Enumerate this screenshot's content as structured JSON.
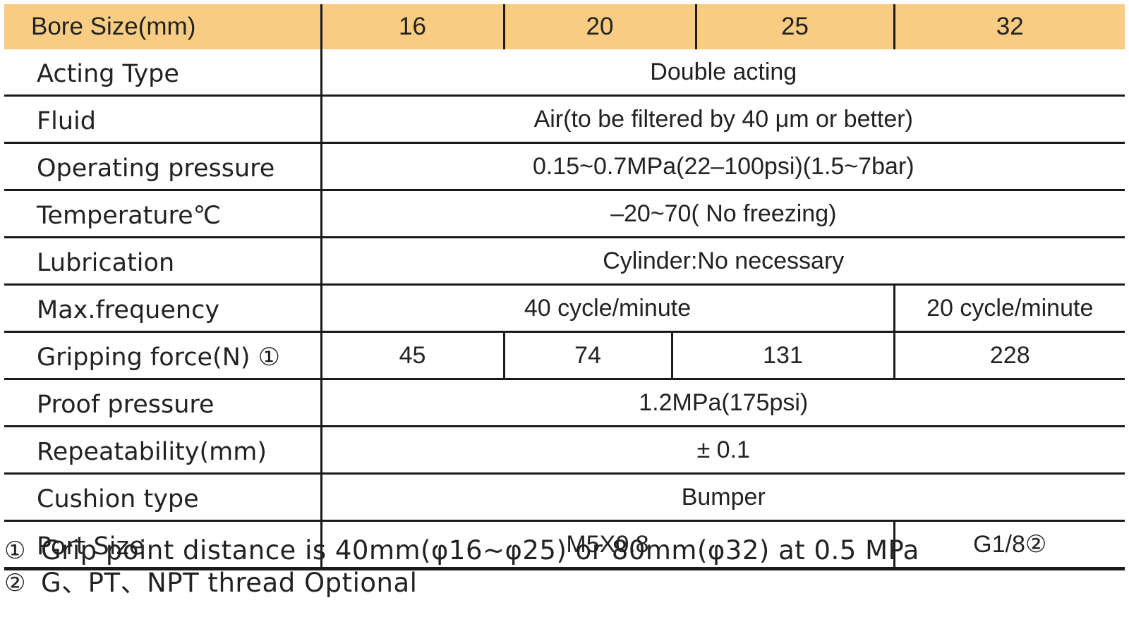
{
  "header": {
    "label": "Bore Size(mm)",
    "bores": [
      "16",
      "20",
      "25",
      "32"
    ]
  },
  "rows": {
    "acting_type": {
      "label": "Acting Type",
      "value": "Double acting"
    },
    "fluid": {
      "label": "Fluid",
      "value": "Air(to be filtered by 40  μm or better)"
    },
    "operating_pressure": {
      "label": "Operating pressure",
      "value": "0.15~0.7MPa(22–100psi)(1.5~7bar)"
    },
    "temperature": {
      "label": "Temperature℃",
      "value": "–20~70( No freezing)"
    },
    "lubrication": {
      "label": "Lubrication",
      "value": "Cylinder:No necessary"
    },
    "max_frequency": {
      "label": "Max.frequency",
      "value_small": "40 cycle/minute",
      "value_large": "20 cycle/minute"
    },
    "gripping_force": {
      "label": "Gripping force(N) ①",
      "values": [
        "45",
        "74",
        "131",
        "228"
      ]
    },
    "proof_pressure": {
      "label": "Proof pressure",
      "value": "1.2MPa(175psi)"
    },
    "repeatability": {
      "label": "Repeatability(mm)",
      "value": "± 0.1"
    },
    "cushion_type": {
      "label": "Cushion type",
      "value": "Bumper"
    },
    "port_size": {
      "label": "Port Size",
      "value_small": "M5X0.8",
      "value_large": "G1/8②"
    }
  },
  "notes": [
    {
      "marker": "①",
      "text": "Grip point distance is 40mm(φ16~φ25) or 80mm(φ32) at 0.5 MPa"
    },
    {
      "marker": "②",
      "text": "G、PT、NPT thread Optional"
    }
  ],
  "colors": {
    "header_background": "#f8cc82",
    "rule": "#1a1a1a",
    "text": "#222222"
  }
}
